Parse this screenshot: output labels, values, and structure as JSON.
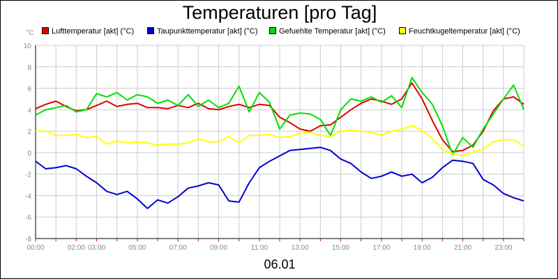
{
  "chart_data": {
    "type": "line",
    "title": "Temperaturen [pro Tag]",
    "ylabel": "°C",
    "xlabel": "06.01",
    "ylim": [
      -8,
      10
    ],
    "xlim": [
      0,
      24
    ],
    "grid": true,
    "legend_position": "top",
    "yticks": [
      -8,
      -6,
      -4,
      -2,
      0,
      2,
      4,
      6,
      8,
      10
    ],
    "xticks": [
      {
        "x": 0,
        "label": "00:00"
      },
      {
        "x": 2,
        "label": "02:00"
      },
      {
        "x": 3,
        "label": "03:00"
      },
      {
        "x": 5,
        "label": "05:00"
      },
      {
        "x": 7,
        "label": "07:00"
      },
      {
        "x": 9,
        "label": "09:00"
      },
      {
        "x": 11,
        "label": "11:00"
      },
      {
        "x": 13,
        "label": "13:00"
      },
      {
        "x": 15,
        "label": "15:00"
      },
      {
        "x": 17,
        "label": "17:00"
      },
      {
        "x": 19,
        "label": "19:00"
      },
      {
        "x": 21,
        "label": "21:00"
      },
      {
        "x": 23,
        "label": "23:00"
      }
    ],
    "x": [
      0,
      0.5,
      1,
      1.5,
      2,
      2.5,
      3,
      3.5,
      4,
      4.5,
      5,
      5.5,
      6,
      6.5,
      7,
      7.5,
      8,
      8.5,
      9,
      9.5,
      10,
      10.5,
      11,
      11.5,
      12,
      12.5,
      13,
      13.5,
      14,
      14.5,
      15,
      15.5,
      16,
      16.5,
      17,
      17.5,
      18,
      18.5,
      19,
      19.5,
      20,
      20.5,
      21,
      21.5,
      22,
      22.5,
      23,
      23.5,
      24
    ],
    "series": [
      {
        "name": "Lufttemperatur [akt] (°C)",
        "color": "#e00000",
        "values": [
          4.1,
          4.5,
          4.8,
          4.3,
          3.9,
          4.0,
          4.4,
          4.8,
          4.3,
          4.5,
          4.6,
          4.2,
          4.2,
          4.1,
          4.4,
          4.2,
          4.6,
          4.1,
          4.0,
          4.3,
          4.5,
          4.2,
          4.5,
          4.4,
          3.3,
          2.8,
          2.2,
          2.0,
          2.5,
          2.6,
          3.3,
          4.0,
          4.6,
          5.0,
          4.8,
          4.5,
          5.0,
          6.5,
          5.0,
          3.0,
          1.2,
          0.1,
          0.2,
          0.7,
          2.0,
          3.9,
          5.0,
          5.2,
          4.5
        ]
      },
      {
        "name": "Taupunkttemperatur [akt] (°C)",
        "color": "#0000d0",
        "values": [
          -0.8,
          -1.5,
          -1.4,
          -1.2,
          -1.5,
          -2.2,
          -2.8,
          -3.6,
          -3.9,
          -3.6,
          -4.3,
          -5.2,
          -4.4,
          -4.7,
          -4.1,
          -3.3,
          -3.1,
          -2.8,
          -3.0,
          -4.5,
          -4.6,
          -2.8,
          -1.4,
          -0.8,
          -0.3,
          0.2,
          0.3,
          0.4,
          0.5,
          0.2,
          -0.6,
          -1.0,
          -1.8,
          -2.4,
          -2.2,
          -1.8,
          -2.2,
          -2.0,
          -2.8,
          -2.3,
          -1.4,
          -0.7,
          -0.8,
          -1.0,
          -2.5,
          -3.0,
          -3.8,
          -4.2,
          -4.5
        ]
      },
      {
        "name": "Gefuehlte Temperatur [akt] (°C)",
        "color": "#00e000",
        "values": [
          3.5,
          4.0,
          4.2,
          4.4,
          3.8,
          4.0,
          5.5,
          5.2,
          5.6,
          4.9,
          5.4,
          5.2,
          4.6,
          4.9,
          4.4,
          5.4,
          4.3,
          4.9,
          4.2,
          4.6,
          6.2,
          3.8,
          5.6,
          4.7,
          2.2,
          3.5,
          3.7,
          3.6,
          3.1,
          1.6,
          4.0,
          5.0,
          4.8,
          5.2,
          4.7,
          5.3,
          4.2,
          7.0,
          5.6,
          4.5,
          2.5,
          -0.2,
          1.4,
          0.5,
          2.2,
          3.6,
          5.0,
          6.3,
          4.0
        ]
      },
      {
        "name": "Feuchtkugeltemperatur [akt] (°C)",
        "color": "#ffff00",
        "values": [
          2.0,
          2.0,
          1.6,
          1.6,
          1.7,
          1.4,
          1.5,
          0.8,
          1.1,
          0.9,
          1.0,
          0.9,
          0.7,
          0.8,
          0.8,
          0.9,
          1.3,
          1.0,
          1.0,
          1.5,
          0.9,
          1.6,
          1.6,
          1.7,
          1.4,
          1.5,
          1.8,
          1.9,
          1.6,
          1.5,
          2.0,
          2.1,
          2.0,
          1.9,
          1.6,
          2.0,
          2.2,
          2.5,
          2.1,
          1.3,
          0.3,
          -0.1,
          -0.3,
          0.1,
          0.3,
          1.0,
          1.2,
          1.2,
          0.6
        ]
      }
    ]
  },
  "axis_tick_color": "#888888",
  "grid_color": "#cccccc"
}
